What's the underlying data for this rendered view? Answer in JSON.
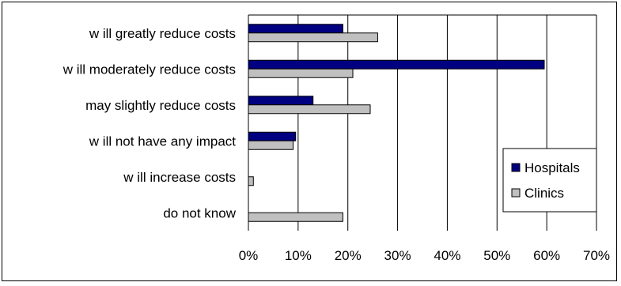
{
  "chart_data": {
    "type": "bar",
    "orientation": "horizontal",
    "categories": [
      "w ill greatly reduce costs",
      "w ill moderately reduce costs",
      "may slightly reduce costs",
      "w ill not have any impact",
      "w ill increase costs",
      "do not know"
    ],
    "series": [
      {
        "name": "Hospitals",
        "color": "#000080",
        "values": [
          19,
          59.5,
          13,
          9.5,
          0,
          0
        ]
      },
      {
        "name": "Clinics",
        "color": "#c0c0c0",
        "values": [
          26,
          21,
          24.5,
          9,
          1,
          19
        ]
      }
    ],
    "xlim": [
      0,
      70
    ],
    "xticks": [
      "0%",
      "10%",
      "20%",
      "30%",
      "40%",
      "50%",
      "60%",
      "70%"
    ],
    "grid": true,
    "legend": "right"
  }
}
